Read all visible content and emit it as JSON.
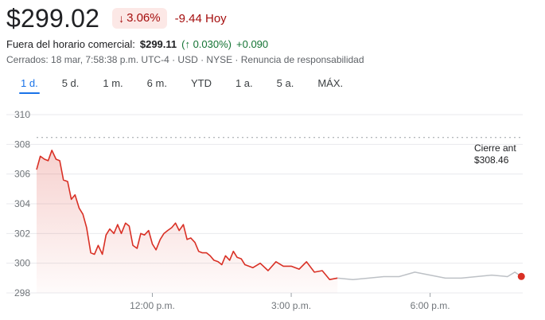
{
  "quote": {
    "price": "$299.02",
    "change_arrow_icon": "arrow-down-icon",
    "change_pct": "3.06%",
    "change_abs": "-9.44 Hoy",
    "color_down": "#a50e0e",
    "color_down_bg": "#fce8e6",
    "color_up": "#137333"
  },
  "after_hours": {
    "label": "Fuera del horario comercial:",
    "price": "$299.11",
    "pct": "(↑ 0.030%)",
    "abs": "+0.090"
  },
  "status": {
    "text": "Cerrados: 18 mar, 7:58:38 p.m. UTC-4 · USD · NYSE · Renuncia de responsabilidad"
  },
  "tabs": [
    {
      "label": "1 d.",
      "active": true
    },
    {
      "label": "5 d.",
      "active": false
    },
    {
      "label": "1 m.",
      "active": false
    },
    {
      "label": "6 m.",
      "active": false
    },
    {
      "label": "YTD",
      "active": false
    },
    {
      "label": "1 a.",
      "active": false
    },
    {
      "label": "5 a.",
      "active": false
    },
    {
      "label": "MÁX.",
      "active": false
    }
  ],
  "chart_data": {
    "type": "line",
    "ylim": [
      298,
      310
    ],
    "y_ticks": [
      "310",
      "308",
      "306",
      "304",
      "302",
      "300",
      "298"
    ],
    "y_tick_values": [
      310,
      308,
      306,
      304,
      302,
      300,
      298
    ],
    "x_ticks": [
      "12:00 p.m.",
      "3:00 p.m.",
      "6:00 p.m."
    ],
    "x_tick_values": [
      12,
      15,
      18
    ],
    "xlim": [
      9.5,
      20.0
    ],
    "previous_close": {
      "label": "Cierre ant",
      "value": 308.46,
      "value_text": "$308.46"
    },
    "line_color": "#d93025",
    "after_hours_color": "#bdc1c6",
    "series": [
      {
        "session": "regular",
        "x": [
          9.5,
          9.58,
          9.67,
          9.75,
          9.83,
          9.92,
          10.0,
          10.08,
          10.17,
          10.25,
          10.33,
          10.42,
          10.5,
          10.58,
          10.67,
          10.75,
          10.83,
          10.92,
          11.0,
          11.08,
          11.17,
          11.25,
          11.33,
          11.42,
          11.5,
          11.58,
          11.67,
          11.75,
          11.83,
          11.92,
          12.0,
          12.08,
          12.17,
          12.25,
          12.33,
          12.42,
          12.5,
          12.58,
          12.67,
          12.75,
          12.83,
          12.92,
          13.0,
          13.08,
          13.17,
          13.25,
          13.33,
          13.42,
          13.5,
          13.58,
          13.67,
          13.75,
          13.83,
          13.92,
          14.0,
          14.17,
          14.33,
          14.5,
          14.67,
          14.83,
          15.0,
          15.17,
          15.33,
          15.5,
          15.67,
          15.83,
          16.0
        ],
        "y": [
          306.3,
          307.2,
          307.0,
          306.9,
          307.6,
          307.0,
          306.9,
          305.6,
          305.5,
          304.3,
          304.6,
          303.7,
          303.3,
          302.4,
          300.7,
          300.6,
          301.2,
          300.6,
          301.9,
          302.3,
          302.0,
          302.6,
          302.0,
          302.7,
          302.5,
          301.2,
          301.0,
          302.0,
          301.9,
          302.2,
          301.3,
          300.9,
          301.6,
          302.0,
          302.2,
          302.4,
          302.7,
          302.2,
          302.6,
          301.6,
          301.7,
          301.4,
          300.8,
          300.7,
          300.7,
          300.5,
          300.2,
          300.1,
          299.9,
          300.5,
          300.2,
          300.8,
          300.4,
          300.3,
          299.9,
          299.7,
          300.0,
          299.5,
          300.1,
          299.8,
          299.8,
          299.6,
          300.1,
          299.4,
          299.5,
          298.9,
          299.0
        ]
      },
      {
        "session": "after_hours",
        "x": [
          16.0,
          16.33,
          16.67,
          17.0,
          17.33,
          17.67,
          18.0,
          18.33,
          18.67,
          19.0,
          19.33,
          19.67,
          19.83,
          19.97
        ],
        "y": [
          299.0,
          298.9,
          299.0,
          299.1,
          299.1,
          299.4,
          299.2,
          299.0,
          299.0,
          299.1,
          299.2,
          299.1,
          299.4,
          299.11
        ]
      }
    ]
  }
}
